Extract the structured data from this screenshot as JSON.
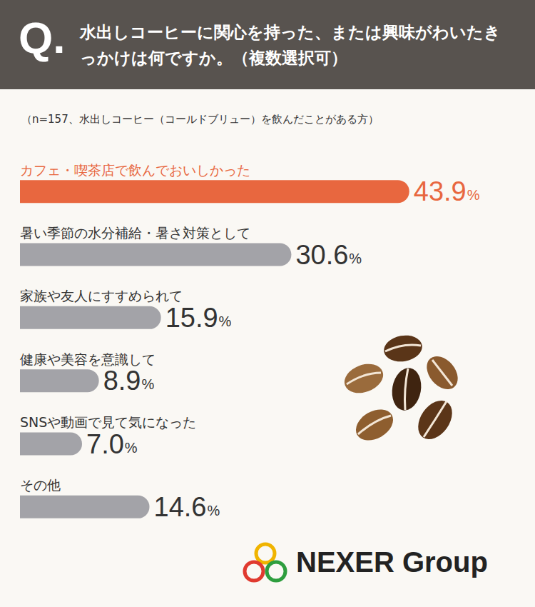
{
  "chart_data": {
    "type": "bar",
    "title": "水出しコーヒーに関心を持った、または興味がわいたきっかけは何ですか。（複数選択可）",
    "subtitle": "（n=157、水出しコーヒー（コールドブリュー）を飲んだことがある方）",
    "categories": [
      "カフェ・喫茶店で飲んでおいしかった",
      "暑い季節の水分補給・暑さ対策として",
      "家族や友人にすすめられて",
      "健康や美容を意識して",
      "SNSや動画で見て気になった",
      "その他"
    ],
    "values": [
      43.9,
      30.6,
      15.9,
      8.9,
      7.0,
      14.6
    ],
    "value_labels": [
      "43.9%",
      "30.6%",
      "15.9%",
      "8.9%",
      "7.0%",
      "14.6%"
    ],
    "colors": [
      "#e8673f",
      "#a3a3a8",
      "#a3a3a8",
      "#a3a3a8",
      "#a3a3a8",
      "#a3a3a8"
    ],
    "orientation": "horizontal",
    "xlim": [
      0,
      44
    ],
    "data_labels": true,
    "tick_labels": false,
    "grid": false
  },
  "header_mark": "Q.",
  "logo": "NEXER Group"
}
